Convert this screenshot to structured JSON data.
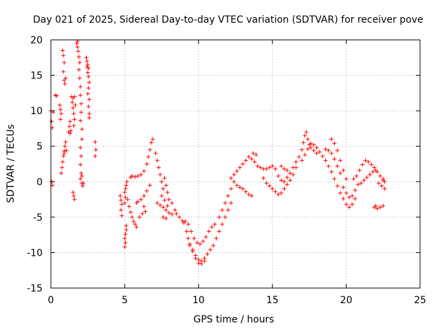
{
  "chart_data": {
    "type": "scatter",
    "title": "Day 021 of 2025, Sidereal Day-to-day VTEC variation (SDTVAR) for receiver pove",
    "xlabel": "GPS time / hours",
    "ylabel": "SDTVAR / TECUs",
    "xlim": [
      0,
      25
    ],
    "ylim": [
      -15,
      20
    ],
    "xticks": [
      "0",
      "5",
      "10",
      "15",
      "20",
      "25"
    ],
    "yticks": [
      "-15",
      "-10",
      "-5",
      "0",
      "5",
      "10",
      "15",
      "20"
    ],
    "grid": true,
    "marker": "plus",
    "series": [
      {
        "name": "SDTVAR",
        "color": "#ff0000",
        "points": [
          [
            0.0,
            10.0
          ],
          [
            0.05,
            8.5
          ],
          [
            0.1,
            7.6
          ],
          [
            0.15,
            9.8
          ],
          [
            0.05,
            0.0
          ],
          [
            0.1,
            -0.5
          ],
          [
            0.3,
            12.2
          ],
          [
            0.4,
            12.1
          ],
          [
            0.6,
            10.8
          ],
          [
            0.65,
            10.2
          ],
          [
            0.7,
            9.6
          ],
          [
            0.65,
            8.8
          ],
          [
            0.8,
            18.5
          ],
          [
            0.85,
            17.8
          ],
          [
            0.9,
            16.8
          ],
          [
            0.85,
            15.5
          ],
          [
            0.9,
            14.3
          ],
          [
            0.95,
            13.8
          ],
          [
            1.0,
            14.6
          ],
          [
            0.7,
            1.2
          ],
          [
            0.75,
            2.0
          ],
          [
            0.8,
            2.8
          ],
          [
            0.85,
            3.6
          ],
          [
            0.9,
            4.3
          ],
          [
            0.95,
            5.0
          ],
          [
            1.0,
            5.6
          ],
          [
            0.9,
            4.0
          ],
          [
            1.05,
            4.4
          ],
          [
            1.2,
            7.0
          ],
          [
            1.25,
            7.8
          ],
          [
            1.3,
            8.5
          ],
          [
            1.35,
            7.2
          ],
          [
            1.3,
            6.8
          ],
          [
            1.4,
            12.0
          ],
          [
            1.45,
            11.2
          ],
          [
            1.5,
            10.4
          ],
          [
            1.55,
            9.6
          ],
          [
            1.6,
            8.8
          ],
          [
            1.55,
            7.9
          ],
          [
            1.5,
            11.8
          ],
          [
            1.6,
            12.0
          ],
          [
            1.65,
            10.8
          ],
          [
            1.55,
            -2.0
          ],
          [
            1.6,
            -2.5
          ],
          [
            1.5,
            -1.5
          ],
          [
            1.75,
            19.5
          ],
          [
            1.8,
            19.0
          ],
          [
            1.85,
            18.4
          ],
          [
            1.9,
            17.6
          ],
          [
            1.95,
            16.8
          ],
          [
            1.9,
            15.8
          ],
          [
            1.95,
            14.6
          ],
          [
            2.0,
            13.4
          ],
          [
            2.0,
            12.2
          ],
          [
            2.05,
            11.0
          ],
          [
            2.05,
            9.8
          ],
          [
            2.0,
            8.6
          ],
          [
            2.1,
            7.4
          ],
          [
            2.1,
            6.0
          ],
          [
            2.0,
            4.8
          ],
          [
            2.05,
            3.6
          ],
          [
            2.0,
            2.4
          ],
          [
            2.05,
            1.2
          ],
          [
            2.0,
            0.4
          ],
          [
            2.1,
            -0.2
          ],
          [
            2.15,
            -0.6
          ],
          [
            2.2,
            -0.2
          ],
          [
            2.1,
            0.8
          ],
          [
            1.8,
            19.8
          ],
          [
            2.4,
            17.5
          ],
          [
            2.45,
            17.0
          ],
          [
            2.5,
            16.5
          ],
          [
            2.55,
            16.0
          ],
          [
            2.5,
            15.4
          ],
          [
            2.55,
            14.8
          ],
          [
            2.6,
            14.0
          ],
          [
            2.55,
            13.2
          ],
          [
            2.5,
            12.4
          ],
          [
            2.6,
            11.6
          ],
          [
            2.55,
            10.6
          ],
          [
            2.6,
            9.6
          ],
          [
            2.6,
            9.0
          ],
          [
            2.45,
            16.2
          ],
          [
            3.0,
            5.6
          ],
          [
            3.05,
            4.5
          ],
          [
            3.0,
            3.6
          ],
          [
            4.7,
            -2.0
          ],
          [
            4.75,
            -2.6
          ],
          [
            4.8,
            -3.2
          ],
          [
            4.75,
            -4.0
          ],
          [
            4.8,
            -4.8
          ],
          [
            5.0,
            -1.5
          ],
          [
            5.05,
            -1.0
          ],
          [
            5.1,
            -0.5
          ],
          [
            5.15,
            0.0
          ],
          [
            5.05,
            -2.2
          ],
          [
            5.0,
            -3.0
          ],
          [
            5.1,
            -6.8
          ],
          [
            5.05,
            -7.4
          ],
          [
            5.0,
            -8.0
          ],
          [
            5.05,
            -8.6
          ],
          [
            5.0,
            -9.2
          ],
          [
            5.1,
            -6.2
          ],
          [
            5.2,
            -2.5
          ],
          [
            5.3,
            -3.5
          ],
          [
            5.4,
            -4.3
          ],
          [
            5.5,
            -5.0
          ],
          [
            5.6,
            -5.6
          ],
          [
            5.7,
            -6.0
          ],
          [
            5.8,
            -6.4
          ],
          [
            5.4,
            0.6
          ],
          [
            5.5,
            0.8
          ],
          [
            5.7,
            0.7
          ],
          [
            5.9,
            0.8
          ],
          [
            6.1,
            1.0
          ],
          [
            6.3,
            1.5
          ],
          [
            6.5,
            2.5
          ],
          [
            6.6,
            3.5
          ],
          [
            6.7,
            4.5
          ],
          [
            6.8,
            5.5
          ],
          [
            6.9,
            6.0
          ],
          [
            5.8,
            -3.0
          ],
          [
            5.9,
            -2.8
          ],
          [
            6.1,
            -2.5
          ],
          [
            6.3,
            -2.0
          ],
          [
            6.5,
            -1.3
          ],
          [
            6.7,
            -0.5
          ],
          [
            6.0,
            -5.0
          ],
          [
            6.2,
            -4.5
          ],
          [
            6.4,
            -4.2
          ],
          [
            6.3,
            -3.5
          ],
          [
            7.1,
            4.0
          ],
          [
            7.2,
            3.0
          ],
          [
            7.3,
            2.0
          ],
          [
            7.4,
            1.0
          ],
          [
            7.5,
            0.0
          ],
          [
            7.6,
            -1.0
          ],
          [
            7.2,
            -3.0
          ],
          [
            7.4,
            -3.3
          ],
          [
            7.6,
            -3.6
          ],
          [
            7.8,
            -4.0
          ],
          [
            8.0,
            -4.4
          ],
          [
            8.2,
            -4.6
          ],
          [
            7.7,
            0.5
          ],
          [
            7.8,
            -0.5
          ],
          [
            7.9,
            -1.5
          ],
          [
            8.0,
            -2.5
          ],
          [
            8.2,
            -3.0
          ],
          [
            7.5,
            -2.0
          ],
          [
            7.7,
            -2.6
          ],
          [
            7.9,
            -3.4
          ],
          [
            7.6,
            -5.0
          ],
          [
            7.8,
            -5.2
          ],
          [
            8.4,
            -4.0
          ],
          [
            8.5,
            -4.5
          ],
          [
            8.7,
            -5.0
          ],
          [
            8.9,
            -5.5
          ],
          [
            9.0,
            -5.8
          ],
          [
            9.1,
            -5.6
          ],
          [
            9.2,
            -7.0
          ],
          [
            9.3,
            -8.0
          ],
          [
            9.4,
            -8.8
          ],
          [
            9.6,
            -9.6
          ],
          [
            9.8,
            -10.4
          ],
          [
            10.0,
            -11.0
          ],
          [
            10.2,
            -11.2
          ],
          [
            10.4,
            -10.8
          ],
          [
            10.6,
            -10.2
          ],
          [
            10.8,
            -9.6
          ],
          [
            11.0,
            -9.0
          ],
          [
            9.3,
            -6.0
          ],
          [
            9.5,
            -7.0
          ],
          [
            9.7,
            -8.0
          ],
          [
            9.9,
            -8.6
          ],
          [
            10.1,
            -8.8
          ],
          [
            10.3,
            -8.4
          ],
          [
            10.5,
            -7.8
          ],
          [
            10.7,
            -7.0
          ],
          [
            10.9,
            -6.4
          ],
          [
            11.1,
            -6.0
          ],
          [
            9.4,
            -9.0
          ],
          [
            9.6,
            -9.8
          ],
          [
            9.8,
            -10.8
          ],
          [
            10.0,
            -11.5
          ],
          [
            10.2,
            -11.6
          ],
          [
            10.4,
            -11.2
          ],
          [
            11.2,
            -8.0
          ],
          [
            11.4,
            -7.0
          ],
          [
            11.6,
            -6.0
          ],
          [
            11.8,
            -5.0
          ],
          [
            12.0,
            -4.0
          ],
          [
            12.2,
            -3.0
          ],
          [
            11.4,
            -5.0
          ],
          [
            11.6,
            -4.0
          ],
          [
            11.8,
            -3.0
          ],
          [
            12.0,
            -2.0
          ],
          [
            12.2,
            -1.0
          ],
          [
            12.4,
            0.0
          ],
          [
            12.2,
            0.5
          ],
          [
            12.4,
            1.0
          ],
          [
            12.6,
            1.5
          ],
          [
            12.8,
            2.0
          ],
          [
            13.0,
            2.5
          ],
          [
            13.2,
            3.0
          ],
          [
            12.6,
            -0.5
          ],
          [
            12.8,
            -0.8
          ],
          [
            13.0,
            -1.0
          ],
          [
            13.2,
            -1.4
          ],
          [
            13.4,
            -1.8
          ],
          [
            13.6,
            -2.0
          ],
          [
            13.4,
            3.5
          ],
          [
            13.6,
            3.2
          ],
          [
            13.8,
            2.8
          ],
          [
            14.0,
            2.2
          ],
          [
            13.9,
            3.8
          ],
          [
            13.7,
            4.0
          ],
          [
            14.2,
            2.0
          ],
          [
            14.4,
            1.8
          ],
          [
            14.6,
            1.8
          ],
          [
            14.8,
            2.0
          ],
          [
            15.0,
            2.2
          ],
          [
            15.2,
            1.8
          ],
          [
            14.4,
            0.5
          ],
          [
            14.6,
            -0.2
          ],
          [
            14.8,
            -0.6
          ],
          [
            15.0,
            -1.0
          ],
          [
            15.2,
            -1.4
          ],
          [
            15.4,
            -1.8
          ],
          [
            15.6,
            -1.6
          ],
          [
            15.8,
            -1.0
          ],
          [
            16.0,
            -0.4
          ],
          [
            16.2,
            0.2
          ],
          [
            16.4,
            1.0
          ],
          [
            16.6,
            2.0
          ],
          [
            15.4,
            0.8
          ],
          [
            15.6,
            0.2
          ],
          [
            15.8,
            0.0
          ],
          [
            16.0,
            0.6
          ],
          [
            16.2,
            1.2
          ],
          [
            16.4,
            2.0
          ],
          [
            15.6,
            2.2
          ],
          [
            15.8,
            1.8
          ],
          [
            16.0,
            1.6
          ],
          [
            16.6,
            2.8
          ],
          [
            16.8,
            3.5
          ],
          [
            17.0,
            4.5
          ],
          [
            17.1,
            5.5
          ],
          [
            17.2,
            6.5
          ],
          [
            17.3,
            7.0
          ],
          [
            17.4,
            6.0
          ],
          [
            17.5,
            5.2
          ],
          [
            17.6,
            4.8
          ],
          [
            17.8,
            4.4
          ],
          [
            18.0,
            4.0
          ],
          [
            18.2,
            4.2
          ],
          [
            17.0,
            3.0
          ],
          [
            17.2,
            3.8
          ],
          [
            17.4,
            4.6
          ],
          [
            17.6,
            5.4
          ],
          [
            17.8,
            5.2
          ],
          [
            18.0,
            4.8
          ],
          [
            18.4,
            3.6
          ],
          [
            18.6,
            3.0
          ],
          [
            18.8,
            2.2
          ],
          [
            19.0,
            1.4
          ],
          [
            19.2,
            0.4
          ],
          [
            19.4,
            -0.6
          ],
          [
            18.6,
            4.6
          ],
          [
            18.8,
            4.4
          ],
          [
            19.0,
            4.0
          ],
          [
            19.2,
            3.2
          ],
          [
            19.4,
            2.2
          ],
          [
            19.6,
            1.2
          ],
          [
            19.0,
            6.0
          ],
          [
            19.2,
            5.4
          ],
          [
            19.4,
            4.4
          ],
          [
            19.6,
            3.0
          ],
          [
            19.8,
            1.6
          ],
          [
            20.0,
            0.4
          ],
          [
            19.6,
            -1.6
          ],
          [
            19.8,
            -2.4
          ],
          [
            20.0,
            -3.2
          ],
          [
            20.2,
            -3.6
          ],
          [
            20.4,
            -3.2
          ],
          [
            20.6,
            -2.4
          ],
          [
            19.8,
            -0.8
          ],
          [
            20.0,
            -1.6
          ],
          [
            20.2,
            -2.2
          ],
          [
            20.4,
            -2.0
          ],
          [
            20.6,
            -1.2
          ],
          [
            20.8,
            -0.4
          ],
          [
            20.5,
            0.4
          ],
          [
            20.7,
            0.8
          ],
          [
            20.9,
            1.6
          ],
          [
            21.1,
            2.4
          ],
          [
            21.3,
            3.0
          ],
          [
            21.5,
            2.8
          ],
          [
            21.0,
            -0.2
          ],
          [
            21.2,
            0.2
          ],
          [
            21.4,
            0.6
          ],
          [
            21.6,
            1.0
          ],
          [
            21.8,
            1.4
          ],
          [
            22.0,
            1.6
          ],
          [
            21.7,
            2.4
          ],
          [
            21.9,
            2.0
          ],
          [
            22.1,
            1.4
          ],
          [
            22.3,
            0.8
          ],
          [
            22.5,
            0.4
          ],
          [
            22.6,
            0.0
          ],
          [
            22.2,
            -0.2
          ],
          [
            22.4,
            -0.6
          ],
          [
            22.6,
            -1.0
          ],
          [
            22.5,
            0.2
          ],
          [
            21.9,
            -3.6
          ],
          [
            22.1,
            -3.8
          ],
          [
            22.3,
            -3.6
          ],
          [
            22.5,
            -3.4
          ],
          [
            22.0,
            -3.4
          ]
        ]
      }
    ]
  }
}
